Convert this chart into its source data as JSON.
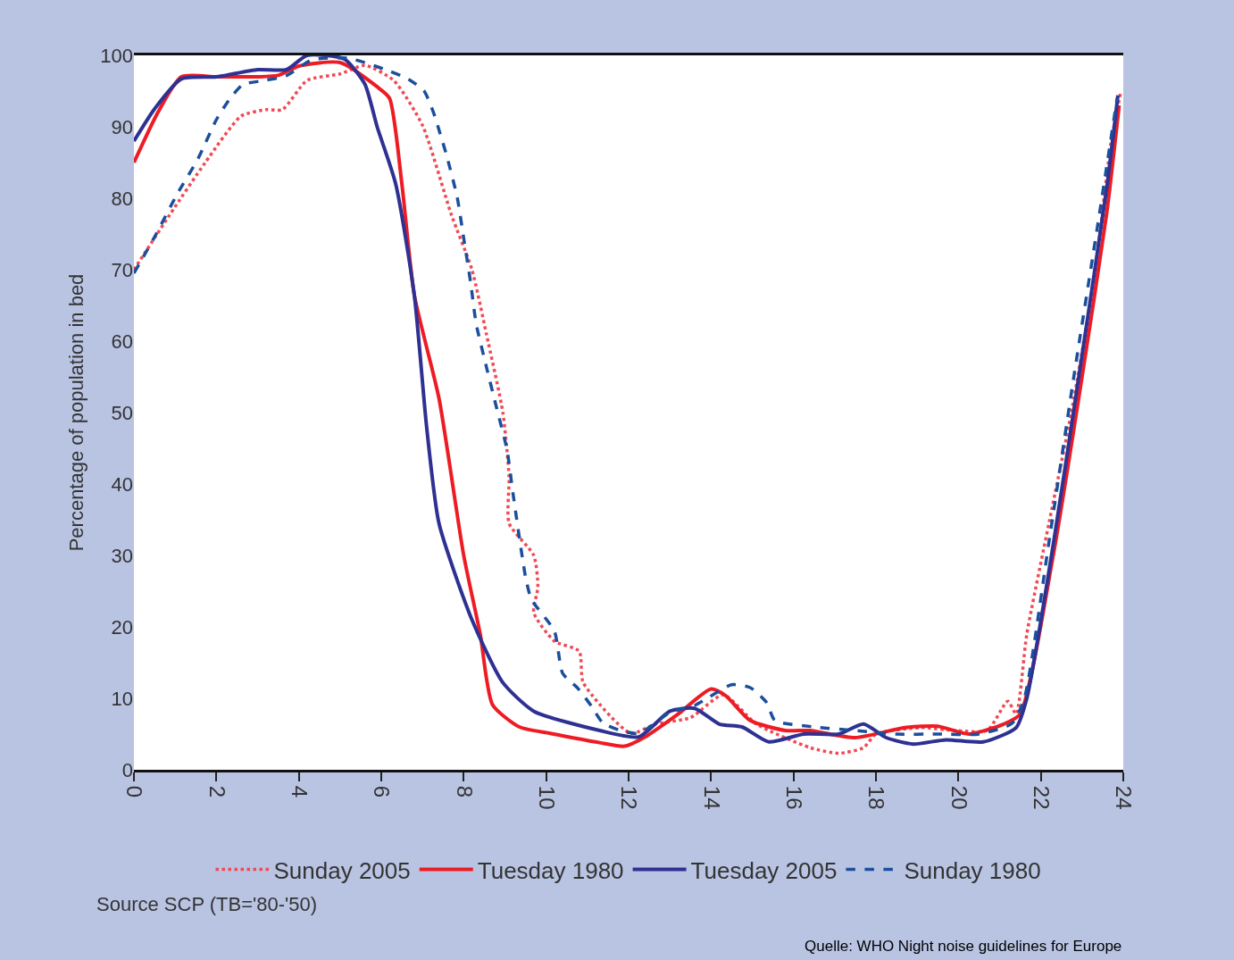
{
  "chart_data": {
    "type": "line",
    "ylabel": "Percentage of population in bed",
    "xlim": [
      0,
      24
    ],
    "xticks": [
      0,
      2,
      4,
      6,
      8,
      10,
      12,
      14,
      16,
      18,
      20,
      22,
      24
    ],
    "ylim": [
      0,
      100
    ],
    "yticks": [
      0,
      10,
      20,
      30,
      40,
      50,
      60,
      70,
      80,
      90,
      100
    ],
    "legend": "bottom",
    "marker": "none",
    "series": [
      {
        "name": "Sunday 2005",
        "color": "#f04a55",
        "line_style": "dotted",
        "x": [
          0,
          0.87,
          1.73,
          2.6,
          3.2,
          3.6,
          4.2,
          5.0,
          5.6,
          6.3,
          7.0,
          7.7,
          8.2,
          8.55,
          8.95,
          9.1,
          9.1,
          9.7,
          9.8,
          9.7,
          10.2,
          10.8,
          10.9,
          12.05,
          12.65,
          13.5,
          14.3,
          15.1,
          16.4,
          17.1,
          17.7,
          18.0,
          19.1,
          19.9,
          20.7,
          21.2,
          21.4,
          21.66,
          22.2,
          22.74,
          23.3,
          23.7,
          23.93
        ],
        "values": [
          70,
          77.7,
          85,
          91.5,
          92.4,
          92.4,
          96.5,
          97.4,
          98.6,
          96.5,
          90.2,
          77.7,
          70,
          61,
          50,
          41,
          34.5,
          30,
          25.6,
          22,
          18,
          16.6,
          12.2,
          5.1,
          6.4,
          7.3,
          10.5,
          6.4,
          3.1,
          2.3,
          3.1,
          5,
          5.9,
          5.5,
          5.5,
          9.6,
          7.8,
          19,
          34.6,
          50,
          69,
          87.7,
          94.6
        ]
      },
      {
        "name": "Tuesday 1980",
        "color": "#ed1c24",
        "line_style": "solid",
        "x": [
          0,
          0.58,
          1.15,
          2,
          3,
          3.5,
          4,
          5,
          5.9,
          6.2,
          6.5,
          6.8,
          7.4,
          8.0,
          8.4,
          8.7,
          9.35,
          10.1,
          11.3,
          11.9,
          12.4,
          13.2,
          14.0,
          14.35,
          14.95,
          15.8,
          16.4,
          17.5,
          18.7,
          19.5,
          20.25,
          21.1,
          21.5,
          22.3,
          23,
          23.6,
          23.9
        ],
        "values": [
          85,
          92,
          97,
          97,
          97,
          97.2,
          98.5,
          99,
          95.6,
          94,
          82,
          66.5,
          52,
          30,
          19,
          9.1,
          6,
          5.1,
          3.8,
          3.3,
          4.6,
          7.8,
          11.3,
          10.4,
          6.9,
          5.5,
          5.5,
          4.5,
          5.9,
          6.1,
          5,
          6.4,
          7.8,
          30,
          55,
          78,
          93
        ]
      },
      {
        "name": "Tuesday 2005",
        "color": "#2e3192",
        "line_style": "solid",
        "x": [
          0,
          0.5,
          1.15,
          2,
          3,
          3.7,
          4.2,
          5.1,
          5.6,
          5.9,
          6.35,
          6.8,
          7.1,
          7.4,
          8.2,
          8.95,
          9.7,
          11.3,
          12.25,
          13.0,
          13.6,
          14.2,
          14.75,
          15.4,
          16.25,
          17.1,
          17.7,
          18.25,
          18.9,
          19.7,
          20.6,
          21.4,
          21.66,
          22.3,
          22.96,
          23.6,
          23.87
        ],
        "values": [
          88,
          92.5,
          96.7,
          97,
          98,
          98,
          100,
          99.5,
          96,
          90,
          82,
          66.5,
          48,
          34.5,
          21,
          12.2,
          8.2,
          5.5,
          4.6,
          8.2,
          8.6,
          6.4,
          6,
          3.9,
          5,
          5,
          6.4,
          4.5,
          3.6,
          4.2,
          3.9,
          5.9,
          10,
          31.5,
          56.5,
          81.5,
          94.4
        ]
      },
      {
        "name": "Sunday 1980",
        "color": "#1b4f9c",
        "line_style": "dashed",
        "x": [
          0,
          0.54,
          1.04,
          1.56,
          2.0,
          2.3,
          2.64,
          3.18,
          3.68,
          4.33,
          5.2,
          5.7,
          6.2,
          6.65,
          7.04,
          7.26,
          7.43,
          7.58,
          7.84,
          8.0,
          8.17,
          8.3,
          8.55,
          8.8,
          9.05,
          9.2,
          9.5,
          9.64,
          10.2,
          10.4,
          10.77,
          11.1,
          11.37,
          11.8,
          12.25,
          13.0,
          13.6,
          14.5,
          14.95,
          15.35,
          15.55,
          16.5,
          17.5,
          18.5,
          19.5,
          20.5,
          21.3,
          21.6,
          22.2,
          22.8,
          23.4,
          23.85
        ],
        "values": [
          69.5,
          75,
          80.5,
          85.6,
          91,
          93.7,
          95.9,
          96.5,
          97.1,
          99.4,
          99.6,
          98.8,
          97.8,
          96.7,
          95,
          92.1,
          89,
          86.1,
          80.2,
          74.4,
          68.1,
          62.5,
          56.4,
          50.6,
          44.8,
          38.5,
          27,
          23.9,
          19.4,
          13.5,
          11.4,
          8.9,
          6.6,
          5.5,
          5.1,
          8,
          9,
          11.9,
          11.5,
          9.4,
          6.9,
          6,
          5.5,
          5,
          5,
          5,
          6.5,
          10,
          32,
          55,
          77,
          94
        ]
      }
    ],
    "annotations": [
      "Source SCP (TB='80-'50)",
      "Quelle: WHO Night noise guidelines for Europe"
    ]
  }
}
